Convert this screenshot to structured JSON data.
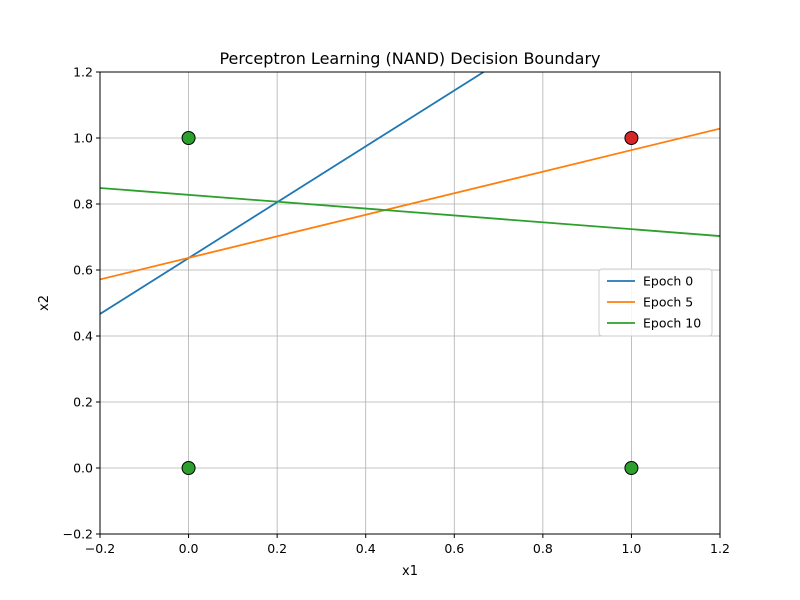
{
  "chart_data": {
    "type": "line",
    "title": "Perceptron Learning (NAND) Decision Boundary",
    "xlabel": "x1",
    "ylabel": "x2",
    "xlim": [
      -0.2,
      1.2
    ],
    "ylim": [
      -0.2,
      1.2
    ],
    "xticks": [
      "−0.2",
      "0.0",
      "0.2",
      "0.4",
      "0.6",
      "0.8",
      "1.0",
      "1.2"
    ],
    "yticks": [
      "−0.2",
      "0.0",
      "0.2",
      "0.4",
      "0.6",
      "0.8",
      "1.0",
      "1.2"
    ],
    "xtick_values": [
      -0.2,
      0.0,
      0.2,
      0.4,
      0.6,
      0.8,
      1.0,
      1.2
    ],
    "ytick_values": [
      -0.2,
      0.0,
      0.2,
      0.4,
      0.6,
      0.8,
      1.0,
      1.2
    ],
    "grid": true,
    "legend_position": "center-right",
    "points": [
      {
        "x": 0,
        "y": 0,
        "color": "#2ca02c"
      },
      {
        "x": 0,
        "y": 1,
        "color": "#2ca02c"
      },
      {
        "x": 1,
        "y": 0,
        "color": "#2ca02c"
      },
      {
        "x": 1,
        "y": 1,
        "color": "#d62728"
      }
    ],
    "series": [
      {
        "name": "Epoch 0",
        "color": "#1f77b4",
        "x": [
          -0.2,
          0.6662
        ],
        "y": [
          0.4667,
          1.2
        ]
      },
      {
        "name": "Epoch 5",
        "color": "#ff7f0e",
        "x": [
          -0.2,
          1.2
        ],
        "y": [
          0.5714,
          1.0286
        ]
      },
      {
        "name": "Epoch 10",
        "color": "#2ca02c",
        "x": [
          -0.2,
          1.2
        ],
        "y": [
          0.8486,
          0.7029
        ]
      }
    ]
  }
}
